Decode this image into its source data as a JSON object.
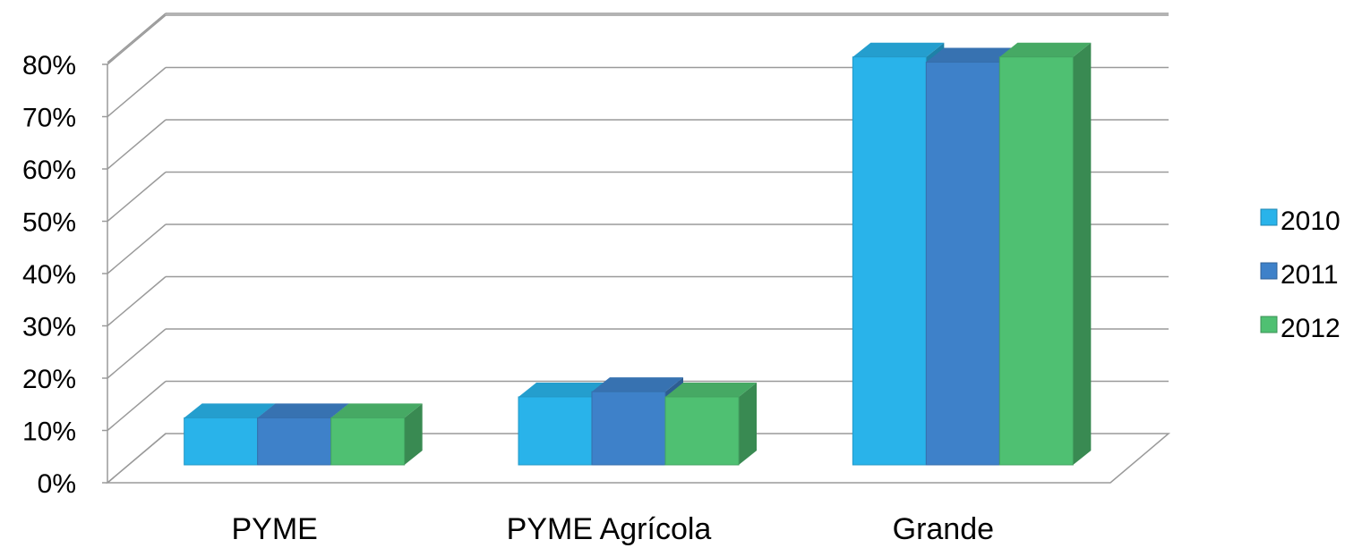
{
  "chart_data": {
    "type": "bar",
    "style": "3d-clustered-column",
    "categories": [
      "PYME",
      "PYME Agrícola",
      "Grande"
    ],
    "series": [
      {
        "name": "2010",
        "values": [
          9,
          13,
          78
        ],
        "color": "#29b3ea"
      },
      {
        "name": "2011",
        "values": [
          9,
          14,
          77
        ],
        "color": "#3e81c9"
      },
      {
        "name": "2012",
        "values": [
          9,
          13,
          78
        ],
        "color": "#4fc072"
      }
    ],
    "y_ticks": [
      "0%",
      "10%",
      "20%",
      "30%",
      "40%",
      "50%",
      "60%",
      "70%",
      "80%"
    ],
    "ylim": [
      0,
      80
    ],
    "y_unit": "%",
    "grid": true,
    "legend_position": "right",
    "title": "",
    "xlabel": "",
    "ylabel": ""
  }
}
